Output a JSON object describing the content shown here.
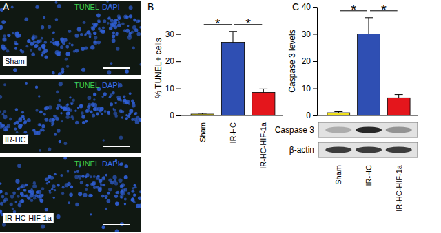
{
  "figure_a": {
    "panel": "A",
    "stains": [
      {
        "text": "TUNEL",
        "color": "#3ccf4e"
      },
      {
        "text": "DAPI",
        "color": "#3d6fe6"
      }
    ],
    "images": [
      "Sham",
      "IR-HC",
      "IR-HC-HIF-1a"
    ]
  },
  "chart_data": [
    {
      "type": "bar",
      "panel": "B",
      "y_label": "% TUNEL+ cells",
      "categories": [
        "Sham",
        "IR-HC",
        "IR-HC-HIF-1a"
      ],
      "values": [
        0.5,
        27,
        8.5
      ],
      "errors": [
        0.3,
        4,
        1.3
      ],
      "colors": [
        "#f2e21c",
        "#2f4fb3",
        "#e4161c"
      ],
      "ylim": [
        0,
        35
      ],
      "yticks": [
        0,
        10,
        20,
        30
      ],
      "significance": [
        {
          "text": "*",
          "between": [
            "Sham",
            "IR-HC"
          ]
        },
        {
          "text": "*",
          "between": [
            "IR-HC",
            "IR-HC-HIF-1a"
          ]
        }
      ]
    },
    {
      "type": "bar",
      "panel": "C",
      "y_label": "Caspase 3 levels",
      "categories": [
        "Sham",
        "IR-HC",
        "IR-HC-HIF-1a"
      ],
      "values": [
        1,
        30,
        6.5
      ],
      "errors": [
        0.4,
        6,
        1.2
      ],
      "colors": [
        "#f2e21c",
        "#2f4fb3",
        "#e4161c"
      ],
      "ylim": [
        0,
        40
      ],
      "yticks": [
        0,
        10,
        20,
        30,
        40
      ],
      "significance": [
        {
          "text": "*",
          "between": [
            "Sham",
            "IR-HC"
          ]
        },
        {
          "text": "*",
          "between": [
            "IR-HC",
            "IR-HC-HIF-1a"
          ]
        }
      ],
      "blot": {
        "rows": [
          "Caspase 3",
          "β-actin"
        ]
      }
    }
  ]
}
